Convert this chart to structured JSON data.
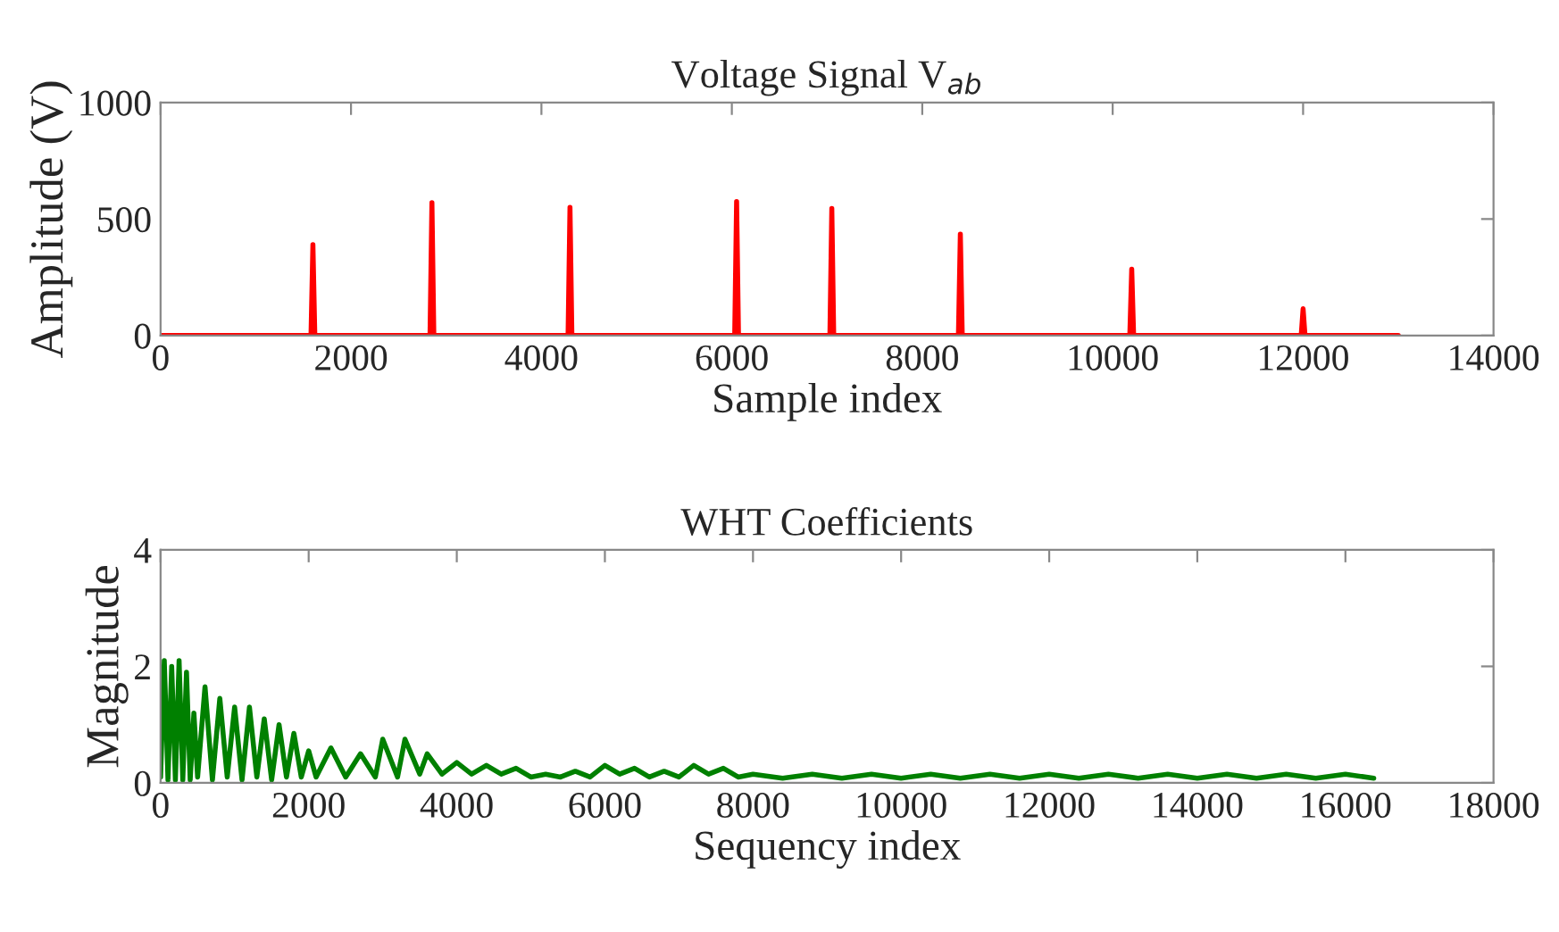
{
  "chart_data": [
    {
      "type": "line",
      "title": "Voltage Signal V$_{ab}$",
      "xlabel": "Sample index",
      "ylabel": "Amplitude (V)",
      "xlim": [
        0,
        14000
      ],
      "ylim": [
        0,
        1000
      ],
      "xticks": [
        0,
        2000,
        4000,
        6000,
        8000,
        10000,
        12000,
        14000
      ],
      "yticks": [
        0,
        500,
        1000
      ],
      "grid": false,
      "series": [
        {
          "color": "#ff0000",
          "x": [
            0,
            1580,
            1600,
            1620,
            2830,
            2850,
            2870,
            4280,
            4300,
            4320,
            6030,
            6050,
            6070,
            7030,
            7050,
            7070,
            8380,
            8400,
            8420,
            10180,
            10200,
            10220,
            11980,
            12000,
            12020,
            13000
          ],
          "values": [
            0,
            0,
            390,
            0,
            0,
            570,
            0,
            0,
            550,
            0,
            0,
            575,
            0,
            0,
            545,
            0,
            0,
            435,
            0,
            0,
            285,
            0,
            0,
            115,
            0,
            0
          ]
        }
      ]
    },
    {
      "type": "line",
      "title": "WHT Coefficients",
      "xlabel": "Sequency index",
      "ylabel": "Magnitude",
      "xlim": [
        0,
        18000
      ],
      "ylim": [
        0,
        4
      ],
      "xticks": [
        0,
        2000,
        4000,
        6000,
        8000,
        10000,
        12000,
        14000,
        16000,
        18000
      ],
      "yticks": [
        0,
        2,
        4
      ],
      "grid": false,
      "series": [
        {
          "color": "#008000",
          "x": [
            0,
            50,
            100,
            150,
            200,
            250,
            300,
            350,
            400,
            450,
            500,
            600,
            700,
            800,
            900,
            1000,
            1100,
            1200,
            1300,
            1400,
            1500,
            1600,
            1700,
            1800,
            1900,
            2000,
            2100,
            2300,
            2500,
            2700,
            2900,
            3000,
            3200,
            3300,
            3500,
            3600,
            3800,
            4000,
            4200,
            4400,
            4600,
            4800,
            5000,
            5200,
            5400,
            5600,
            5800,
            6000,
            6200,
            6400,
            6600,
            6800,
            7000,
            7200,
            7400,
            7600,
            7800,
            8000,
            8400,
            8800,
            9200,
            9600,
            10000,
            10400,
            10800,
            11200,
            11600,
            12000,
            12400,
            12800,
            13200,
            13600,
            14000,
            14400,
            14800,
            15200,
            15600,
            16000,
            16383
          ],
          "values": [
            0.1,
            2.1,
            0.05,
            2.0,
            0.05,
            2.1,
            0.05,
            1.9,
            0.05,
            1.2,
            0.1,
            1.65,
            0.05,
            1.45,
            0.1,
            1.3,
            0.05,
            1.3,
            0.1,
            1.1,
            0.05,
            1.0,
            0.1,
            0.85,
            0.1,
            0.55,
            0.1,
            0.6,
            0.1,
            0.5,
            0.1,
            0.75,
            0.1,
            0.75,
            0.15,
            0.5,
            0.15,
            0.35,
            0.15,
            0.3,
            0.15,
            0.25,
            0.1,
            0.15,
            0.1,
            0.2,
            0.1,
            0.3,
            0.15,
            0.25,
            0.1,
            0.2,
            0.1,
            0.3,
            0.15,
            0.25,
            0.1,
            0.15,
            0.08,
            0.15,
            0.08,
            0.15,
            0.08,
            0.15,
            0.08,
            0.15,
            0.08,
            0.15,
            0.08,
            0.15,
            0.08,
            0.15,
            0.08,
            0.15,
            0.08,
            0.15,
            0.08,
            0.15,
            0.08
          ]
        }
      ]
    }
  ]
}
